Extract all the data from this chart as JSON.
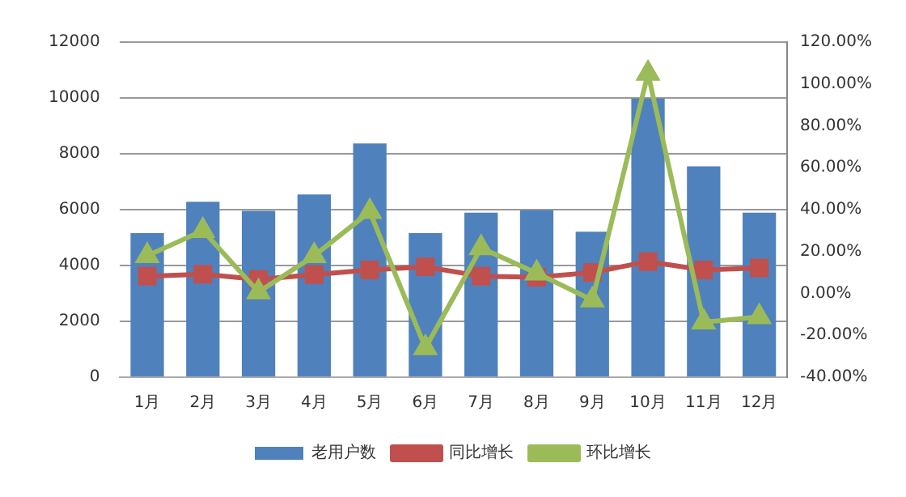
{
  "chart_data": {
    "type": "bar",
    "categories": [
      "1月",
      "2月",
      "3月",
      "4月",
      "5月",
      "6月",
      "7月",
      "8月",
      "9月",
      "10月",
      "11月",
      "12月"
    ],
    "series": [
      {
        "name": "老用户数",
        "color": "#4f81bd",
        "values": [
          5160,
          6280,
          5960,
          6540,
          8370,
          5160,
          5890,
          5980,
          5210,
          9980,
          7550,
          5890
        ]
      },
      {
        "name": "同比增长",
        "type": "line",
        "axis": "y2",
        "marker": "square",
        "color": "#c0504d",
        "values": [
          8.2,
          9.2,
          6.7,
          9,
          11.2,
          12.7,
          8.2,
          7.7,
          10,
          15.2,
          11.2,
          12.2
        ]
      },
      {
        "name": "环比增长",
        "type": "line",
        "axis": "y2",
        "marker": "triangle",
        "color": "#9bbb59",
        "values": [
          18,
          30,
          0.7,
          18,
          39,
          -26,
          21.7,
          9.7,
          -3.2,
          105,
          -13.7,
          -11.2
        ]
      }
    ],
    "ylim": [
      0,
      12000
    ],
    "yticks": [
      0,
      2000,
      4000,
      6000,
      8000,
      10000,
      12000
    ],
    "y2lim": [
      -40,
      120
    ],
    "y2ticks": [
      {
        "value": -40,
        "label": "-40.00%"
      },
      {
        "value": -20,
        "label": "-20.00%"
      },
      {
        "value": 0,
        "label": "0.00%"
      },
      {
        "value": 20,
        "label": "20.00%"
      },
      {
        "value": 40,
        "label": "40.00%"
      },
      {
        "value": 60,
        "label": "60.00%"
      },
      {
        "value": 80,
        "label": "80.00%"
      },
      {
        "value": 100,
        "label": "100.00%"
      },
      {
        "value": 120,
        "label": "120.00%"
      }
    ],
    "grid": "y",
    "legend": "bottom"
  }
}
